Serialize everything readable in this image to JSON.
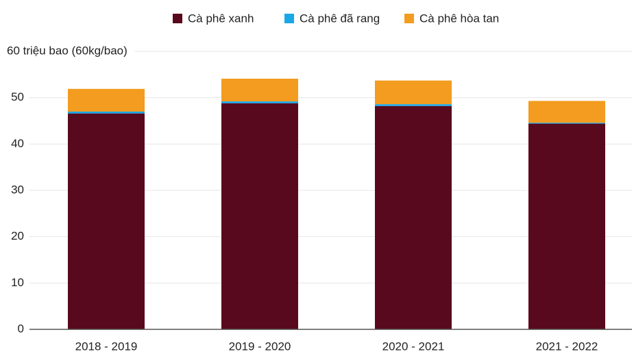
{
  "chart_data": {
    "type": "stacked_bar",
    "categories": [
      "2018 - 2019",
      "2019 - 2020",
      "2020 - 2021",
      "2021 - 2022"
    ],
    "series": [
      {
        "name": "Cà phê xanh",
        "color": "#58091d",
        "values": [
          46.6,
          48.8,
          48.2,
          44.4
        ]
      },
      {
        "name": "Cà phê đã rang",
        "color": "#1aa7e8",
        "values": [
          0.4,
          0.4,
          0.4,
          0.2
        ]
      },
      {
        "name": "Cà phê hòa tan",
        "color": "#f39c1f",
        "values": [
          4.9,
          4.9,
          5.1,
          4.7
        ]
      }
    ],
    "ylim": [
      0,
      60
    ],
    "yticks": [
      0,
      10,
      20,
      30,
      40,
      50,
      {
        "value": 60,
        "label": "60 triệu bao (60kg/bao)"
      }
    ],
    "grid": true,
    "legend": "top"
  }
}
